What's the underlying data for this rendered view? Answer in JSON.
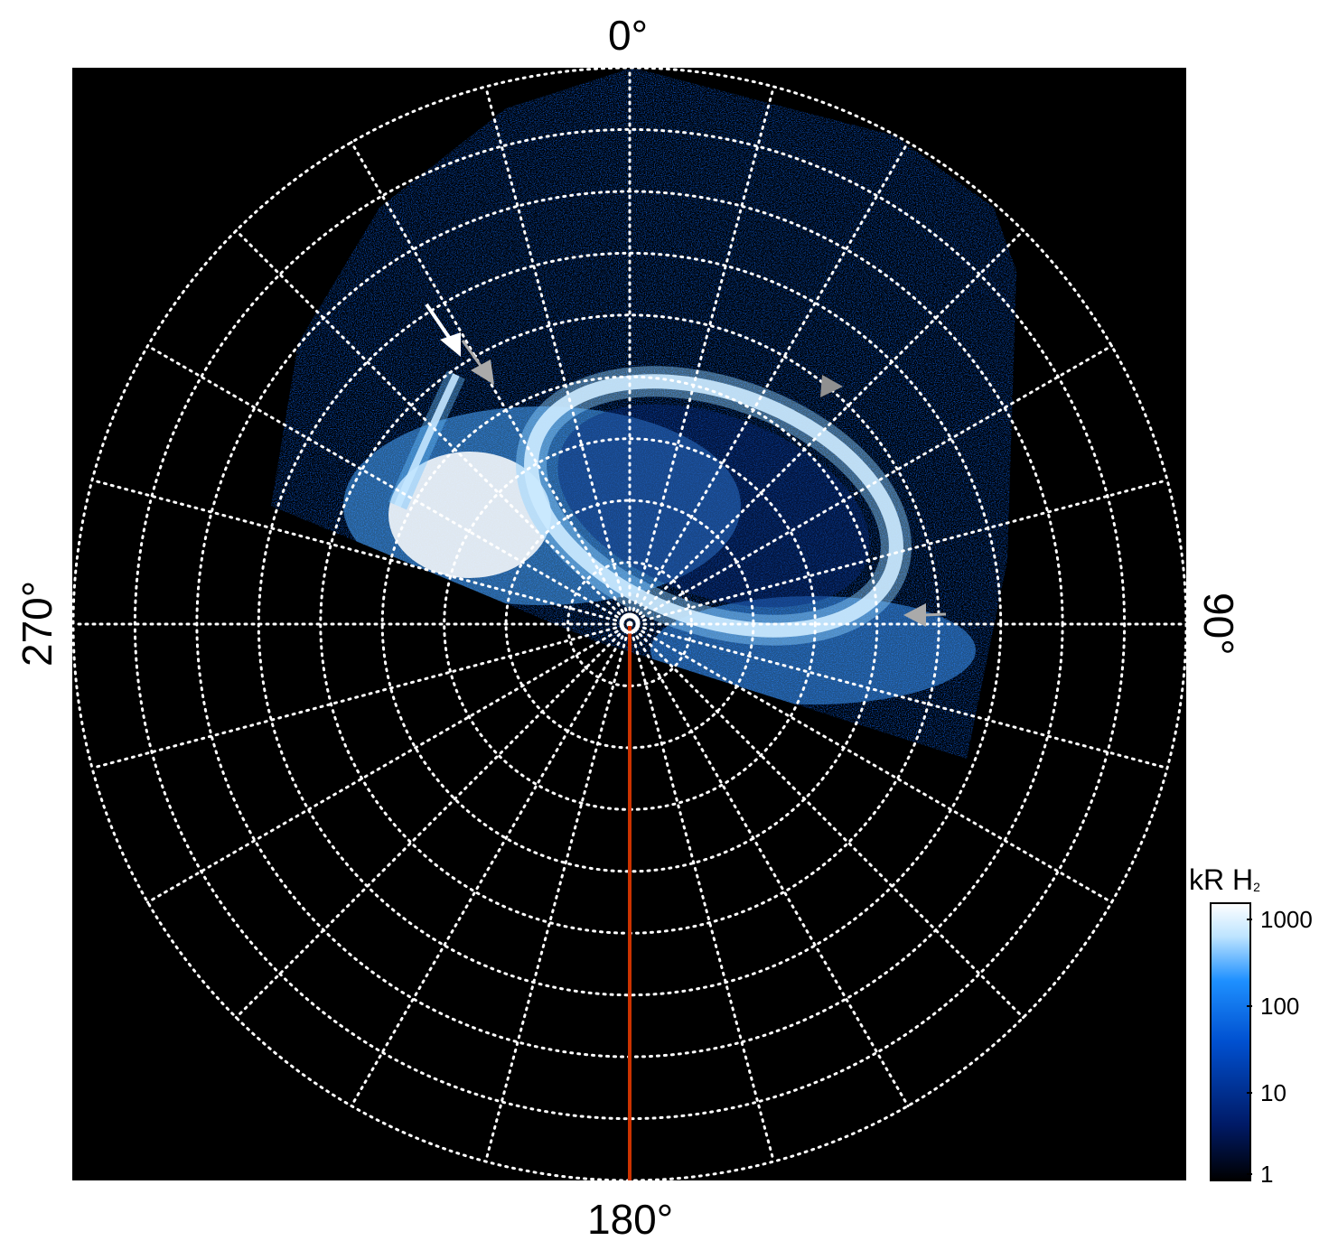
{
  "projection": {
    "type": "polar",
    "angle_labels": {
      "top": "0°",
      "right": "90°",
      "bottom": "180°",
      "left": "270°"
    },
    "meridian_step_deg": 15,
    "parallel_rings": 9,
    "grid": "white dotted"
  },
  "colorbar": {
    "title_main": "kR H",
    "title_sub": "2",
    "scale": "log",
    "ticks": [
      "1000",
      "100",
      "10",
      "1"
    ],
    "colors": [
      "#000000",
      "#001a66",
      "#0050d0",
      "#1e90ff",
      "#bde4ff",
      "#ffffff"
    ]
  },
  "annotations": {
    "arrows": [
      {
        "name": "white-arrow",
        "color": "#ffffff"
      },
      {
        "name": "gray-arrow-upper-left",
        "color": "#aaaaaa"
      },
      {
        "name": "gray-arrow-upper-right",
        "color": "#909090"
      },
      {
        "name": "gray-arrow-right",
        "color": "#aaaaaa"
      }
    ],
    "line_color": "#cc3300"
  }
}
